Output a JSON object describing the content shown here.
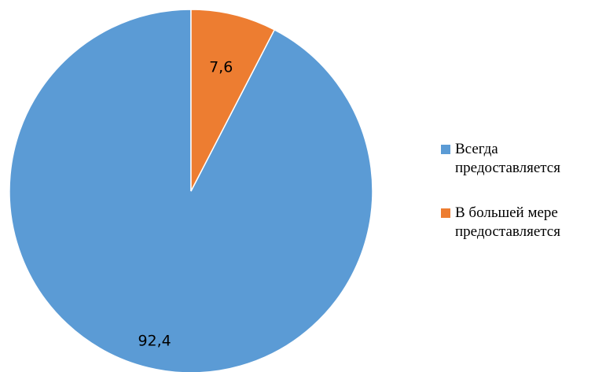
{
  "chart_data": {
    "type": "pie",
    "title": "",
    "start_angle_deg": 90,
    "direction": "counterclockwise",
    "series": [
      {
        "values": [
          92.4,
          7.6
        ]
      }
    ],
    "categories": [
      "Всегда\nпредоставляется",
      "В большей мере\nпредоставляется"
    ],
    "data_labels": [
      "92,4",
      "7,6"
    ],
    "colors": [
      "#5B9BD5",
      "#ED7D31"
    ],
    "legend_position": "right"
  }
}
